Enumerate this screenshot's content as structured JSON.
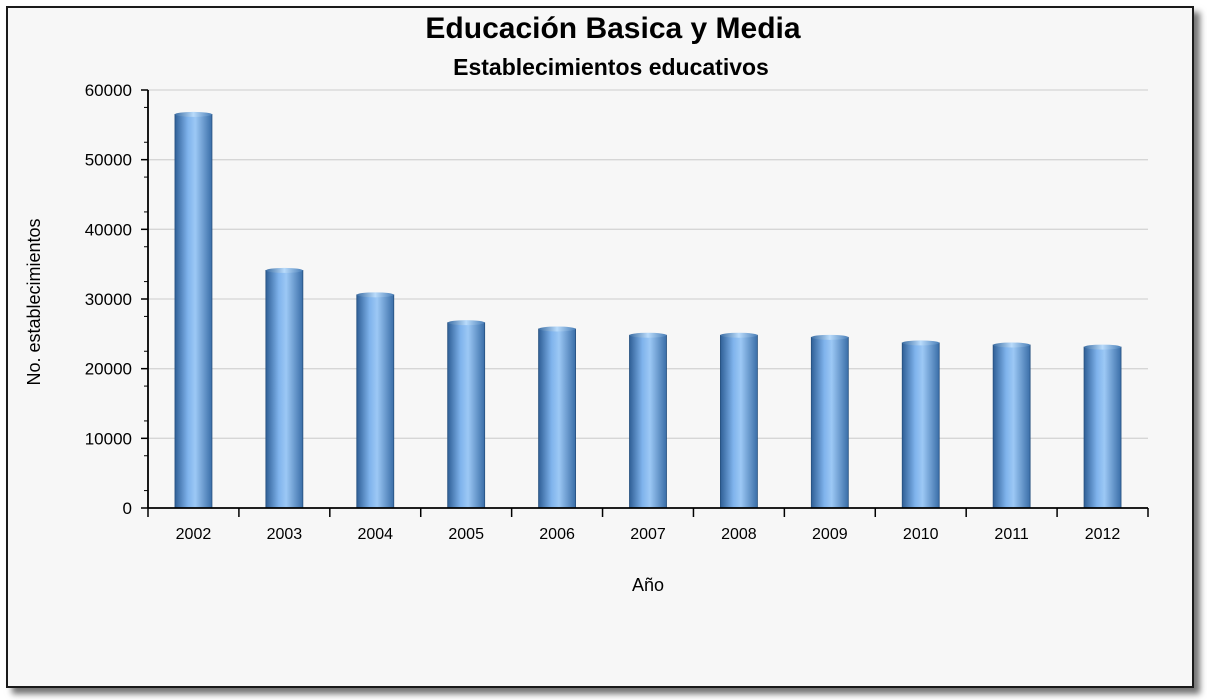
{
  "chart_data": {
    "type": "bar",
    "title": "Educación Basica y Media",
    "subtitle": "Establecimientos educativos",
    "xlabel": "Año",
    "ylabel": "No. establecimientos",
    "categories": [
      "2002",
      "2003",
      "2004",
      "2005",
      "2006",
      "2007",
      "2008",
      "2009",
      "2010",
      "2011",
      "2012"
    ],
    "values": [
      56500,
      34100,
      30600,
      26600,
      25700,
      24800,
      24800,
      24500,
      23700,
      23400,
      23100
    ],
    "ylim": [
      0,
      60000
    ],
    "yticks": [
      "0",
      "10000",
      "20000",
      "30000",
      "40000",
      "50000",
      "60000"
    ],
    "grid": true,
    "bar_color": "#5b9bd5"
  }
}
